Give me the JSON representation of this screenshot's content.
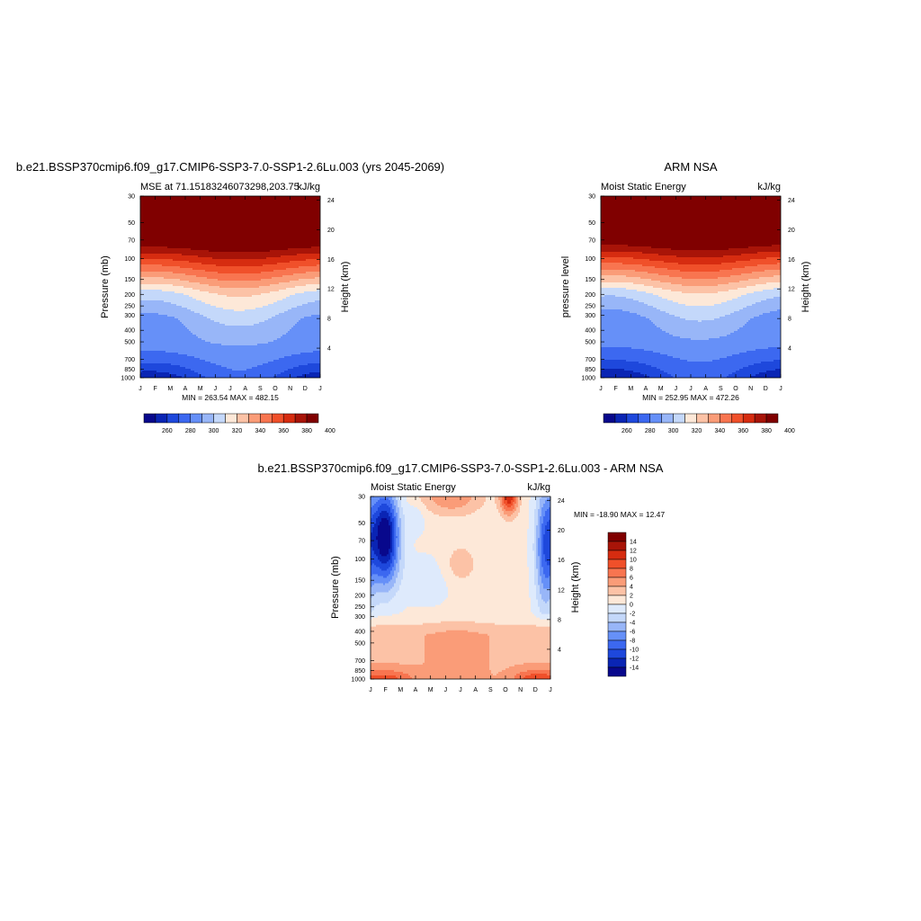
{
  "months": [
    "J",
    "F",
    "M",
    "A",
    "M",
    "J",
    "J",
    "A",
    "S",
    "O",
    "N",
    "D",
    "J"
  ],
  "pressure_ticks": [
    "30",
    "50",
    "70",
    "100",
    "150",
    "200",
    "250",
    "300",
    "400",
    "500",
    "700",
    "850",
    "1000"
  ],
  "height_ticks": [
    "24",
    "20",
    "16",
    "12",
    "8",
    "4"
  ],
  "colors": {
    "levels": [
      "#08088c",
      "#0a25b4",
      "#1e48dc",
      "#3c68f0",
      "#6690f8",
      "#98b6f8",
      "#c4d8fa",
      "#fde8d8",
      "#fcc2a6",
      "#fa9c78",
      "#f87550",
      "#f0502a",
      "#d62c10",
      "#a81408",
      "#800000"
    ],
    "diff_levels": [
      "#08088c",
      "#0a25b4",
      "#1e48dc",
      "#3c68f0",
      "#6690f8",
      "#98b6f8",
      "#c4d8fa",
      "#deeafc",
      "#fde8d8",
      "#fcc2a6",
      "#fa9c78",
      "#f87550",
      "#f0502a",
      "#d62c10",
      "#a81408",
      "#800000"
    ]
  },
  "chart_data": [
    {
      "type": "heatmap",
      "title": "b.e21.BSSP370cmip6.f09_g17.CMIP6-SSP3-7.0-SSP1-2.6Lu.003 (yrs 2045-2069)",
      "subtitle_left": "MSE at 71.15183246073298,203.75",
      "subtitle_right": "kJ/kg",
      "ylabel": "Pressure (mb)",
      "y2label": "Height (km)",
      "stats": "MIN = 263.54 MAX = 482.15",
      "colorbar_labels": [
        "260",
        "280",
        "300",
        "320",
        "340",
        "360",
        "380",
        "400"
      ],
      "x": [
        "J",
        "F",
        "M",
        "A",
        "M",
        "J",
        "J",
        "A",
        "S",
        "O",
        "N",
        "D",
        "J"
      ],
      "ylim": [
        1000,
        30
      ],
      "min": 263.54,
      "max": 482.15
    },
    {
      "type": "heatmap",
      "title": "ARM NSA",
      "subtitle_left": "Moist Static Energy",
      "subtitle_right": "kJ/kg",
      "ylabel": "pressure level",
      "y2label": "Height (km)",
      "stats": "MIN = 252.95 MAX = 472.26",
      "colorbar_labels": [
        "260",
        "280",
        "300",
        "320",
        "340",
        "360",
        "380",
        "400"
      ],
      "x": [
        "J",
        "F",
        "M",
        "A",
        "M",
        "J",
        "J",
        "A",
        "S",
        "O",
        "N",
        "D",
        "J"
      ],
      "ylim": [
        1000,
        30
      ],
      "min": 252.95,
      "max": 472.26
    },
    {
      "type": "heatmap",
      "title": "b.e21.BSSP370cmip6.f09_g17.CMIP6-SSP3-7.0-SSP1-2.6Lu.003 - ARM NSA",
      "subtitle_left": "Moist Static Energy",
      "subtitle_right": "kJ/kg",
      "ylabel": "Pressure (mb)",
      "y2label": "Height (km)",
      "stats": "MIN = -18.90 MAX =  12.47",
      "colorbar_labels": [
        "14",
        "12",
        "10",
        "8",
        "6",
        "4",
        "2",
        "0",
        "-2",
        "-4",
        "-6",
        "-8",
        "-10",
        "-12",
        "-14"
      ],
      "x": [
        "J",
        "F",
        "M",
        "A",
        "M",
        "J",
        "J",
        "A",
        "S",
        "O",
        "N",
        "D",
        "J"
      ],
      "ylim": [
        1000,
        30
      ],
      "min": -18.9,
      "max": 12.47
    }
  ]
}
